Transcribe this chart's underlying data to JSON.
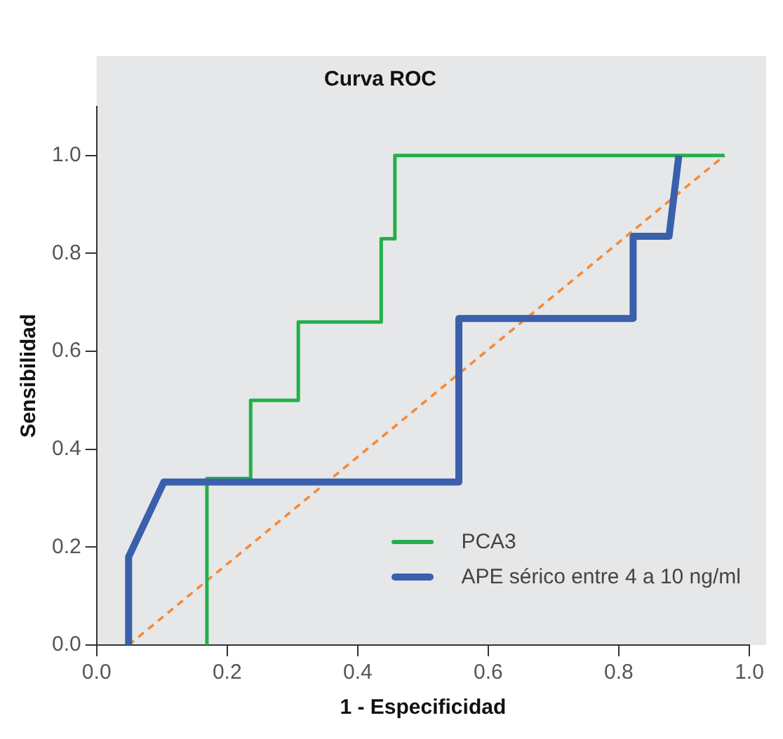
{
  "chart_data": {
    "type": "line",
    "title": "Curva ROC",
    "xlabel": "1 - Especificidad",
    "ylabel": "Sensibilidad",
    "xlim": [
      0,
      1
    ],
    "xticks": [
      {
        "value": 0,
        "label": "0.0"
      },
      0.2,
      0.4,
      0.6,
      0.8,
      {
        "value": 1,
        "label": "1.0"
      }
    ],
    "ylim": [
      0,
      1.1
    ],
    "yticks": [
      {
        "value": 0,
        "label": "0.0"
      },
      0.2,
      0.4,
      0.6,
      0.8,
      {
        "value": 1,
        "label": "1.0"
      }
    ],
    "grid": false,
    "legend": "bottom right",
    "marker": "none",
    "series": [
      {
        "name": "PCA3",
        "color": "#22b04b",
        "x": [
          0.169,
          0.169,
          0.236,
          0.236,
          0.309,
          0.309,
          0.436,
          0.436,
          0.457,
          0.457,
          0.962
        ],
        "values": [
          0,
          0.34,
          0.34,
          0.5,
          0.5,
          0.66,
          0.66,
          0.83,
          0.83,
          1,
          1
        ],
        "line_style": "solid"
      },
      {
        "name": "APE sérico entre 4 a 10 ng/ml",
        "color": "#3a5fab",
        "x": [
          0.049,
          0.049,
          0.103,
          0.555,
          0.555,
          0.822,
          0.822,
          0.877,
          0.892
        ],
        "values": [
          0,
          0.18,
          0.333,
          0.333,
          0.667,
          0.667,
          0.835,
          0.835,
          1
        ],
        "line_style": "solid"
      },
      {
        "type": "line",
        "color": "#f48a3a",
        "x": [
          0.049,
          0.962
        ],
        "values": [
          0,
          1
        ],
        "line_style": "dashed"
      }
    ]
  }
}
